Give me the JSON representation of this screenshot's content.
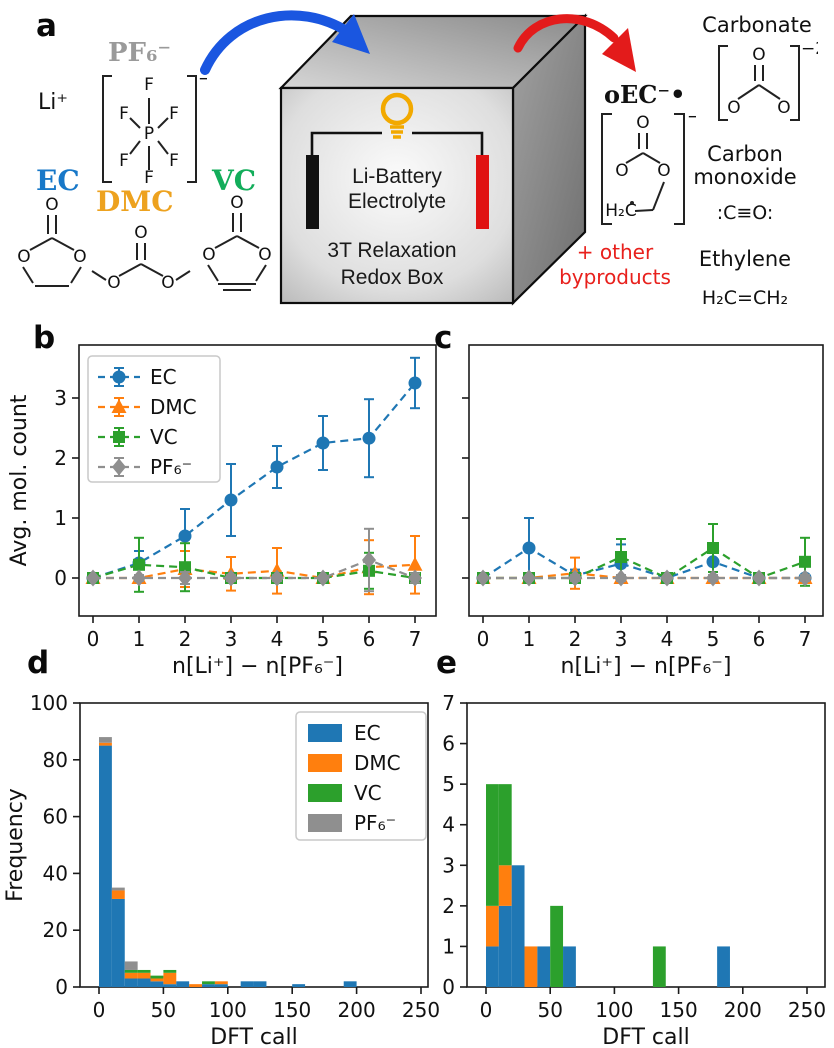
{
  "figure": {
    "panel_labels": {
      "a": "a",
      "b": "b",
      "c": "c",
      "d": "d",
      "e": "e"
    }
  },
  "panel_a": {
    "colors": {
      "ec": "#1878c8",
      "dmc": "#eda21f",
      "vc": "#12ad5a",
      "pf6_gray": "#9a9a9a",
      "arrow_in": "#1a56e0",
      "arrow_out": "#e31b1b",
      "byproducts_red": "#e8201c",
      "electrode_left": "#111111",
      "electrode_right": "#e01212",
      "bulb": "#f2a900"
    },
    "reactants": {
      "li": "Li⁺",
      "pf6": "PF₆⁻",
      "ec": "EC",
      "dmc": "DMC",
      "vc": "VC"
    },
    "atoms": {
      "O": "O",
      "P": "P",
      "F": "F",
      "H2C": "H₂C",
      "minus": "−",
      "minus2": "−2"
    },
    "box": {
      "line1": "Li-Battery",
      "line2": "Electrolyte",
      "line3": "3T Relaxation",
      "line4": "Redox Box"
    },
    "products": {
      "oec": "oEC⁻•",
      "carbonate": "Carbonate",
      "carbon_monoxide_1": "Carbon",
      "carbon_monoxide_2": "monoxide",
      "co_formula": ":C≡O:",
      "byproducts_1": "+ other",
      "byproducts_2": "byproducts",
      "ethylene": "Ethylene",
      "ethylene_formula": "H₂C=CH₂"
    }
  },
  "chart_data": [
    {
      "id": "b",
      "type": "line",
      "x": [
        0,
        1,
        2,
        3,
        4,
        5,
        6,
        7
      ],
      "xlabel": "n[Li⁺] − n[PF₆⁻]",
      "ylabel": "Avg. mol. count",
      "xticks": [
        0,
        1,
        2,
        3,
        4,
        5,
        6,
        7
      ],
      "yticks": [
        0,
        1,
        2,
        3
      ],
      "xlim": [
        -0.35,
        7.45
      ],
      "ylim": [
        -0.63,
        3.88
      ],
      "legend": true,
      "legend_position": "upper-left",
      "grid": false,
      "series": [
        {
          "name": "EC",
          "color": "#1f77b4",
          "marker": "circle",
          "values": [
            0,
            0.25,
            0.7,
            1.3,
            1.85,
            2.25,
            2.33,
            3.25
          ],
          "errors": [
            0.03,
            0.2,
            0.45,
            0.6,
            0.35,
            0.45,
            0.65,
            0.42
          ]
        },
        {
          "name": "DMC",
          "color": "#ff7f0e",
          "marker": "triangle-up",
          "values": [
            0,
            0,
            0.15,
            0.07,
            0.12,
            0,
            0.18,
            0.22
          ],
          "errors": [
            0.03,
            0.04,
            0.3,
            0.28,
            0.38,
            0.04,
            0.45,
            0.48
          ]
        },
        {
          "name": "VC",
          "color": "#2ca02c",
          "marker": "square",
          "values": [
            0,
            0.22,
            0.18,
            0,
            0,
            0,
            0.12,
            0
          ],
          "errors": [
            0.03,
            0.45,
            0.4,
            0.06,
            0.06,
            0.04,
            0.3,
            0.08
          ]
        },
        {
          "name": "PF₆⁻",
          "color": "#8f8f8f",
          "marker": "diamond",
          "values": [
            0,
            0,
            0,
            0,
            0,
            0,
            0.3,
            0
          ],
          "errors": [
            0.03,
            0.05,
            0.1,
            0.05,
            0.05,
            0.04,
            0.52,
            0.08
          ]
        }
      ]
    },
    {
      "id": "c",
      "type": "line",
      "x": [
        0,
        1,
        2,
        3,
        4,
        5,
        6,
        7
      ],
      "xlabel": "n[Li⁺] − n[PF₆⁻]",
      "ylabel": "",
      "xticks": [
        0,
        1,
        2,
        3,
        4,
        5,
        6,
        7
      ],
      "yticks": [
        0,
        1,
        2,
        3
      ],
      "xlim": [
        -0.35,
        7.45
      ],
      "ylim": [
        -0.63,
        3.88
      ],
      "legend": false,
      "grid": false,
      "series": [
        {
          "name": "EC",
          "color": "#1f77b4",
          "marker": "circle",
          "values": [
            0,
            0.5,
            0.04,
            0.24,
            0,
            0.27,
            0,
            0
          ],
          "errors": [
            0.02,
            0.5,
            0.1,
            0.32,
            0.02,
            0.3,
            0.02,
            0.04
          ]
        },
        {
          "name": "DMC",
          "color": "#ff7f0e",
          "marker": "triangle-up",
          "values": [
            0,
            0,
            0.08,
            0,
            0,
            0,
            0,
            0
          ],
          "errors": [
            0.02,
            0.02,
            0.26,
            0.03,
            0.02,
            0.02,
            0.02,
            0.04
          ]
        },
        {
          "name": "VC",
          "color": "#2ca02c",
          "marker": "square",
          "values": [
            0,
            0,
            0,
            0.35,
            0,
            0.5,
            0,
            0.27
          ],
          "errors": [
            0.02,
            0.02,
            0.03,
            0.3,
            0.02,
            0.4,
            0.02,
            0.4
          ]
        },
        {
          "name": "PF₆⁻",
          "color": "#8f8f8f",
          "marker": "diamond",
          "values": [
            0,
            0,
            0,
            0,
            0,
            0,
            0,
            0
          ],
          "errors": [
            0.02,
            0.02,
            0.05,
            0.05,
            0.02,
            0.05,
            0.02,
            0.05
          ]
        }
      ]
    },
    {
      "id": "d",
      "type": "bar",
      "bin_start": 0,
      "bin_width": 10,
      "xlabel": "DFT call",
      "ylabel": "Frequency",
      "xticks": [
        0,
        50,
        100,
        150,
        200,
        250
      ],
      "yticks": [
        0,
        20,
        40,
        60,
        80,
        100
      ],
      "xlim": [
        -15,
        255
      ],
      "ylim": [
        0,
        100
      ],
      "legend": true,
      "legend_position": "upper-right",
      "grid": false,
      "series": [
        {
          "name": "EC",
          "color": "#1f77b4",
          "values": [
            85,
            31,
            3,
            3,
            2,
            1,
            2,
            0,
            1,
            1,
            0,
            2,
            2,
            0,
            0,
            1,
            0,
            0,
            0,
            2,
            0,
            0,
            0,
            0,
            0
          ]
        },
        {
          "name": "DMC",
          "color": "#ff7f0e",
          "values": [
            1,
            3,
            2,
            2,
            1,
            4,
            0,
            1,
            0,
            1,
            0,
            0,
            0,
            0,
            0,
            0,
            0,
            0,
            0,
            0,
            0,
            0,
            0,
            0,
            0
          ]
        },
        {
          "name": "VC",
          "color": "#2ca02c",
          "values": [
            0,
            0,
            1,
            1,
            1,
            1,
            0,
            0,
            1,
            0,
            0,
            0,
            0,
            0,
            0,
            0,
            0,
            0,
            0,
            0,
            0,
            0,
            0,
            0,
            0
          ]
        },
        {
          "name": "PF₆⁻",
          "color": "#8f8f8f",
          "values": [
            2,
            1,
            3,
            0,
            0,
            0,
            0,
            0,
            0,
            0,
            0,
            0,
            0,
            0,
            0,
            0,
            0,
            0,
            0,
            0,
            0,
            0,
            0,
            0,
            0
          ]
        }
      ]
    },
    {
      "id": "e",
      "type": "bar",
      "bin_start": 0,
      "bin_width": 10,
      "xlabel": "DFT call",
      "ylabel": "",
      "xticks": [
        0,
        50,
        100,
        150,
        200,
        250
      ],
      "yticks": [
        0,
        1,
        2,
        3,
        4,
        5,
        6,
        7
      ],
      "xlim": [
        -10,
        269
      ],
      "ylim": [
        0,
        7
      ],
      "legend": false,
      "grid": false,
      "series": [
        {
          "name": "EC",
          "color": "#1f77b4",
          "values": [
            1,
            2,
            3,
            0,
            1,
            0,
            1,
            0,
            0,
            0,
            0,
            0,
            0,
            0,
            0,
            0,
            0,
            0,
            1,
            0,
            0,
            0,
            0,
            0,
            0
          ]
        },
        {
          "name": "DMC",
          "color": "#ff7f0e",
          "values": [
            1,
            1,
            0,
            1,
            0,
            0,
            0,
            0,
            0,
            0,
            0,
            0,
            0,
            0,
            0,
            0,
            0,
            0,
            0,
            0,
            0,
            0,
            0,
            0,
            0
          ]
        },
        {
          "name": "VC",
          "color": "#2ca02c",
          "values": [
            3,
            2,
            0,
            0,
            0,
            2,
            0,
            0,
            0,
            0,
            0,
            0,
            0,
            1,
            0,
            0,
            0,
            0,
            0,
            0,
            0,
            0,
            0,
            0,
            0
          ]
        }
      ]
    }
  ]
}
